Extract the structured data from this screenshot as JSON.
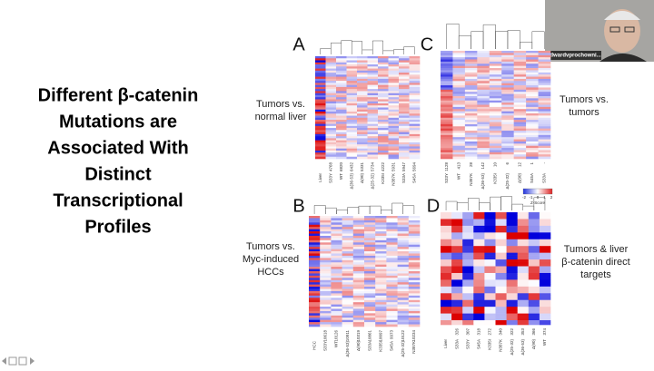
{
  "slide": {
    "title_lines": [
      "Different β-catenin",
      "Mutations are",
      "Associated With",
      "Distinct",
      "Transcriptional",
      "Profiles"
    ],
    "panels": [
      {
        "letter": "A",
        "description": [
          "Tumors vs.",
          "normal liver"
        ],
        "counts": [
          "4768",
          "6820",
          "6432",
          "5331",
          "5734",
          "4222",
          "5931",
          "5947",
          "5694"
        ],
        "columns": [
          "Liver",
          "S33Y",
          "WT",
          "Δ(36-53)",
          "Δ(90)",
          "Δ(25-32)",
          "K335I",
          "N387K",
          "S33A",
          "S45A"
        ]
      },
      {
        "letter": "C",
        "description": [
          "Tumors vs.",
          "tumors"
        ],
        "counts": [
          "1128",
          "413",
          "28",
          "142",
          "10",
          "6",
          "12",
          "1",
          "-"
        ],
        "columns": [
          "S33Y",
          "WT",
          "N387K",
          "Δ(36-53)",
          "K335I",
          "Δ(25-32)",
          "Δ(90)",
          "S45A",
          "S33A"
        ]
      },
      {
        "letter": "B",
        "description": [
          "Tumors vs.",
          "Myc-induced",
          "HCCs"
        ],
        "counts": [
          "10618",
          "10126",
          "10911",
          "10319",
          "10861",
          "10097",
          "9973",
          "10122",
          "10234"
        ],
        "columns": [
          "HCC",
          "S33Y",
          "WT",
          "Δ(36-53)",
          "Δ(90)",
          "S33A",
          "K335I",
          "S45A",
          "Δ(25-32)",
          "N387K"
        ]
      },
      {
        "letter": "D",
        "description": [
          "Tumors & liver",
          "β-catenin direct",
          "targets"
        ],
        "counts": [
          "326",
          "307",
          "318",
          "272",
          "340",
          "322",
          "353",
          "366",
          "374"
        ],
        "columns": [
          "Liver",
          "S33A",
          "S33Y",
          "S45A",
          "K335I",
          "N387K",
          "Δ(25-32)",
          "Δ(36-53)",
          "Δ(90)",
          "WT"
        ]
      }
    ],
    "colorbar": {
      "ticks": [
        "-2",
        "-1",
        "0",
        "1",
        "2"
      ],
      "label": "Z-Score"
    }
  },
  "participant": {
    "name": "edwardvprochowni..."
  }
}
